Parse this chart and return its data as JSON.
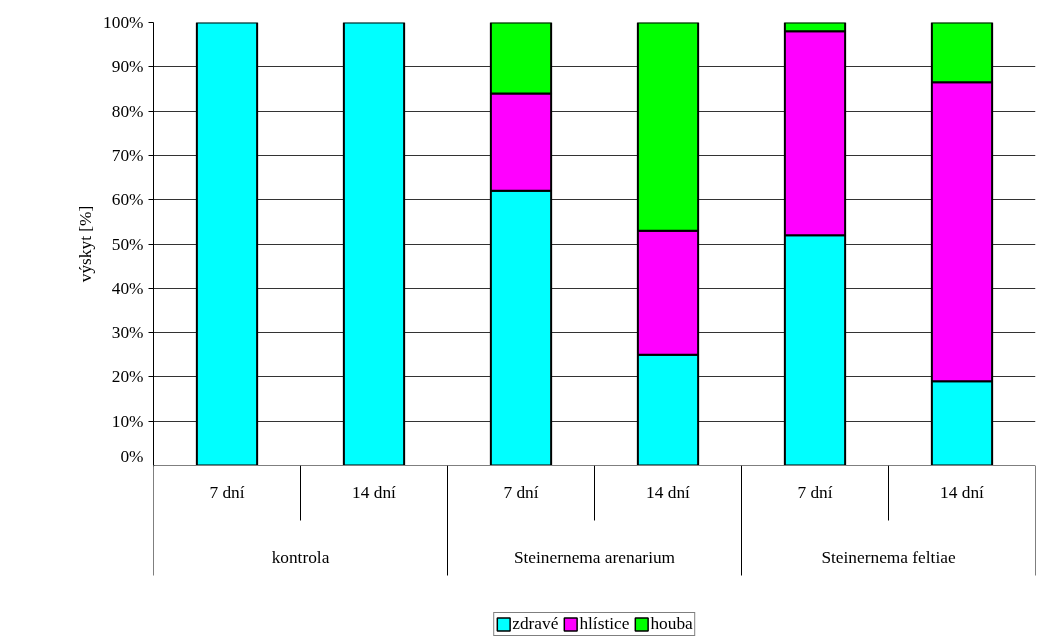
{
  "chart_data": {
    "type": "bar",
    "stacked": true,
    "ylabel": "výskyt [%]",
    "categories": [
      "7 dní",
      "14 dní",
      "7 dní",
      "14 dní",
      "7 dní",
      "14 dní"
    ],
    "annotations": [
      "kontrola",
      "Steinernema arenarium",
      "Steinernema feltiae"
    ],
    "series": [
      {
        "name": "zdravé",
        "color": "#00ffff",
        "values": [
          100,
          100,
          62,
          25,
          52,
          19
        ]
      },
      {
        "name": "hlístice",
        "color": "#ff00ff",
        "values": [
          0,
          0,
          22,
          28,
          46,
          67.5
        ]
      },
      {
        "name": "houba",
        "color": "#00ff00",
        "values": [
          0,
          0,
          16,
          47,
          2,
          13.5
        ]
      }
    ],
    "ylim": [
      0,
      100
    ],
    "yticks": [
      {
        "value": 0,
        "label": "0%"
      },
      {
        "value": 10,
        "label": "10%"
      },
      {
        "value": 20,
        "label": "20%"
      },
      {
        "value": 30,
        "label": "30%"
      },
      {
        "value": 40,
        "label": "40%"
      },
      {
        "value": 50,
        "label": "50%"
      },
      {
        "value": 60,
        "label": "60%"
      },
      {
        "value": 70,
        "label": "70%"
      },
      {
        "value": 80,
        "label": "80%"
      },
      {
        "value": 90,
        "label": "90%"
      },
      {
        "value": 100,
        "label": "100%"
      }
    ],
    "grid": "y",
    "legend": "bottom"
  }
}
